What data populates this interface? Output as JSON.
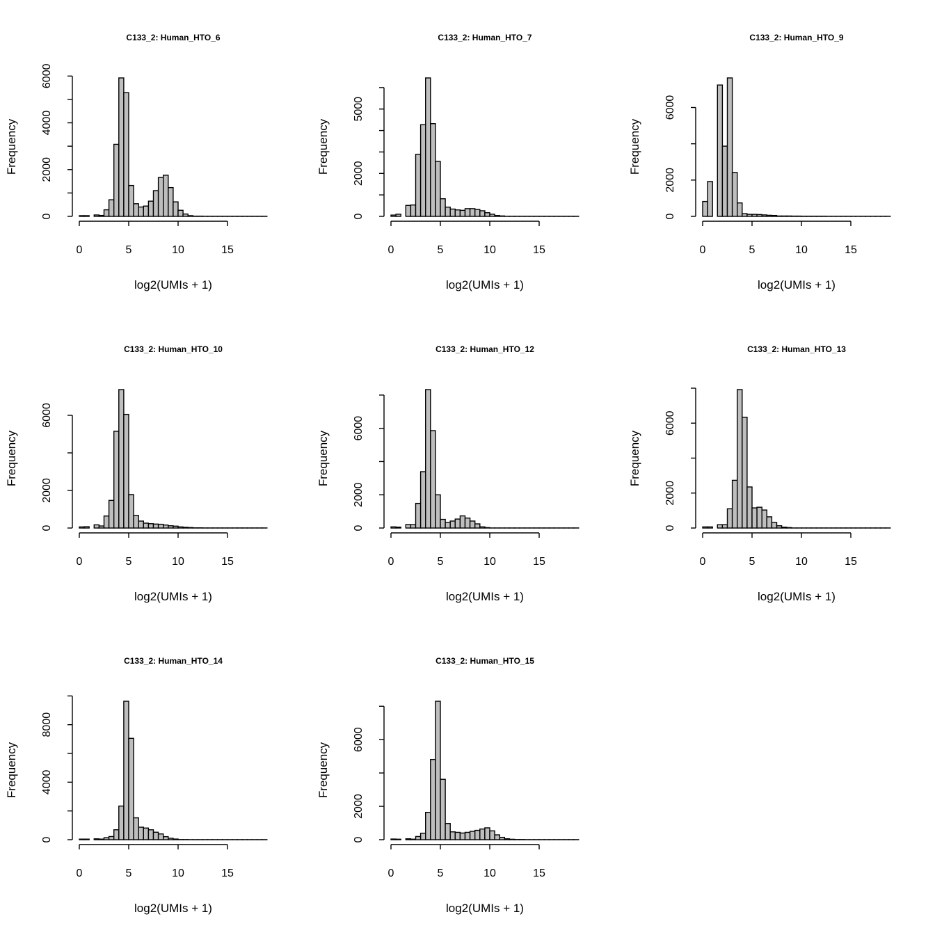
{
  "chart_data": [
    {
      "type": "bar",
      "title": "C133_2: Human_HTO_6",
      "xlabel": "log2(UMIs + 1)",
      "ylabel": "Frequency",
      "bin_width": 0.5,
      "xlim": [
        0,
        19
      ],
      "xticks": [
        0,
        5,
        10,
        15
      ],
      "yticks": [
        0,
        1000,
        2000,
        3000,
        4000,
        5000,
        6000
      ],
      "ytick_labels": [
        "0",
        "",
        "2000",
        "",
        "4000",
        "",
        "6000"
      ],
      "values": [
        30,
        30,
        0,
        60,
        40,
        280,
        710,
        3080,
        5920,
        5290,
        1320,
        540,
        400,
        440,
        650,
        1100,
        1660,
        1760,
        1230,
        620,
        260,
        100,
        30,
        10,
        10,
        5,
        5,
        5,
        5,
        5,
        5,
        5,
        5,
        5,
        5,
        5,
        5,
        5
      ]
    },
    {
      "type": "bar",
      "title": "C133_2: Human_HTO_7",
      "xlabel": "log2(UMIs + 1)",
      "ylabel": "Frequency",
      "bin_width": 0.5,
      "xlim": [
        0,
        19
      ],
      "xticks": [
        0,
        5,
        10,
        15
      ],
      "yticks": [
        0,
        1000,
        2000,
        3000,
        4000,
        5000,
        6000
      ],
      "ytick_labels": [
        "0",
        "",
        "2000",
        "",
        "",
        "5000",
        ""
      ],
      "values": [
        60,
        100,
        0,
        510,
        530,
        2890,
        4270,
        6450,
        4320,
        2560,
        820,
        430,
        340,
        300,
        280,
        360,
        360,
        320,
        260,
        170,
        100,
        40,
        20,
        5,
        5,
        5,
        5,
        5,
        5,
        5,
        5,
        5,
        5,
        5,
        5,
        5,
        5,
        5
      ]
    },
    {
      "type": "bar",
      "title": "C133_2: Human_HTO_9",
      "xlabel": "log2(UMIs + 1)",
      "ylabel": "Frequency",
      "bin_width": 0.5,
      "xlim": [
        0,
        19
      ],
      "xticks": [
        0,
        5,
        10,
        15
      ],
      "yticks": [
        0,
        2000,
        4000,
        6000
      ],
      "ytick_labels": [
        "0",
        "2000",
        "",
        "6000"
      ],
      "values": [
        820,
        1920,
        0,
        7240,
        3870,
        7630,
        2420,
        740,
        150,
        110,
        110,
        100,
        80,
        60,
        50,
        20,
        20,
        20,
        15,
        15,
        10,
        10,
        10,
        10,
        10,
        5,
        5,
        5,
        5,
        5,
        5,
        5,
        5,
        5,
        5,
        5,
        5,
        5
      ]
    },
    {
      "type": "bar",
      "title": "C133_2: Human_HTO_10",
      "xlabel": "log2(UMIs + 1)",
      "ylabel": "Frequency",
      "bin_width": 0.5,
      "xlim": [
        0,
        19
      ],
      "xticks": [
        0,
        5,
        10,
        15
      ],
      "yticks": [
        0,
        2000,
        4000,
        6000
      ],
      "ytick_labels": [
        "0",
        "2000",
        "",
        "6000"
      ],
      "values": [
        60,
        70,
        0,
        170,
        110,
        640,
        1470,
        5150,
        7370,
        6050,
        1780,
        670,
        370,
        260,
        230,
        210,
        200,
        160,
        120,
        100,
        60,
        40,
        25,
        10,
        10,
        5,
        5,
        5,
        5,
        5,
        5,
        5,
        5,
        5,
        5,
        5,
        5,
        5
      ]
    },
    {
      "type": "bar",
      "title": "C133_2: Human_HTO_12",
      "xlabel": "log2(UMIs + 1)",
      "ylabel": "Frequency",
      "bin_width": 0.5,
      "xlim": [
        0,
        19
      ],
      "xticks": [
        0,
        5,
        10,
        15
      ],
      "yticks": [
        0,
        2000,
        4000,
        6000,
        8000
      ],
      "ytick_labels": [
        "0",
        "2000",
        "",
        "6000",
        ""
      ],
      "values": [
        70,
        55,
        0,
        210,
        200,
        1480,
        3390,
        8330,
        5860,
        2000,
        520,
        330,
        420,
        540,
        730,
        600,
        420,
        250,
        70,
        25,
        5,
        5,
        5,
        5,
        5,
        5,
        5,
        5,
        5,
        5,
        5,
        5,
        5,
        5,
        5,
        5,
        5,
        5
      ]
    },
    {
      "type": "bar",
      "title": "C133_2: Human_HTO_13",
      "xlabel": "log2(UMIs + 1)",
      "ylabel": "Frequency",
      "bin_width": 0.5,
      "xlim": [
        0,
        19
      ],
      "xticks": [
        0,
        5,
        10,
        15
      ],
      "yticks": [
        0,
        2000,
        4000,
        6000,
        8000
      ],
      "ytick_labels": [
        "0",
        "2000",
        "",
        "6000",
        ""
      ],
      "values": [
        65,
        65,
        0,
        190,
        190,
        1100,
        2730,
        7920,
        6340,
        2350,
        1150,
        1190,
        1030,
        640,
        320,
        130,
        50,
        25,
        5,
        5,
        5,
        5,
        5,
        5,
        5,
        5,
        5,
        5,
        5,
        5,
        5,
        5,
        5,
        5,
        5,
        5,
        5,
        5
      ]
    },
    {
      "type": "bar",
      "title": "C133_2: Human_HTO_14",
      "xlabel": "log2(UMIs + 1)",
      "ylabel": "Frequency",
      "bin_width": 0.5,
      "xlim": [
        0,
        19
      ],
      "xticks": [
        0,
        5,
        10,
        15
      ],
      "yticks": [
        0,
        2000,
        4000,
        6000,
        8000,
        10000
      ],
      "ytick_labels": [
        "0",
        "",
        "4000",
        "",
        "8000",
        ""
      ],
      "values": [
        40,
        40,
        0,
        60,
        40,
        140,
        220,
        690,
        2340,
        9630,
        7050,
        1520,
        870,
        810,
        690,
        520,
        400,
        210,
        100,
        45,
        10,
        10,
        5,
        5,
        5,
        5,
        5,
        5,
        5,
        5,
        5,
        5,
        5,
        5,
        5,
        5,
        5,
        5
      ]
    },
    {
      "type": "bar",
      "title": "C133_2: Human_HTO_15",
      "xlabel": "log2(UMIs + 1)",
      "ylabel": "Frequency",
      "bin_width": 0.5,
      "xlim": [
        0,
        19
      ],
      "xticks": [
        0,
        5,
        10,
        15
      ],
      "yticks": [
        0,
        2000,
        4000,
        6000,
        8000
      ],
      "ytick_labels": [
        "0",
        "2000",
        "",
        "6000",
        ""
      ],
      "values": [
        40,
        30,
        0,
        55,
        30,
        190,
        390,
        1640,
        4810,
        8300,
        3620,
        970,
        470,
        440,
        400,
        440,
        500,
        560,
        640,
        710,
        530,
        290,
        140,
        55,
        25,
        10,
        10,
        5,
        5,
        5,
        5,
        5,
        5,
        5,
        5,
        5,
        5,
        5
      ]
    }
  ],
  "colors": {
    "bar_fill": "#bebebe",
    "bar_stroke": "#000000"
  }
}
